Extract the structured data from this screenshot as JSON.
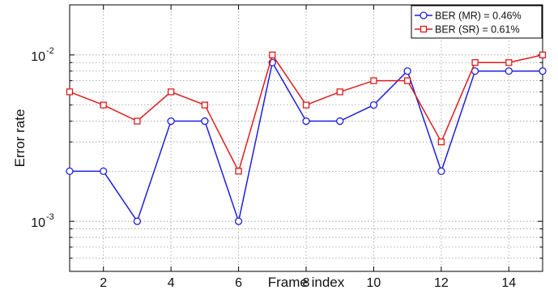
{
  "chart_data": {
    "type": "line",
    "xlabel": "Frame index",
    "ylabel": "Error rate",
    "xlim": [
      1,
      15
    ],
    "ylim": [
      0.0005,
      0.02
    ],
    "y_scale": "log",
    "grid": true,
    "legend_position": "top-right",
    "x_ticks": [
      2,
      4,
      6,
      8,
      10,
      12,
      14
    ],
    "x_tick_labels": [
      "2",
      "4",
      "6",
      "8",
      "10",
      "12",
      "14"
    ],
    "y_ticks": [
      0.001,
      0.01
    ],
    "y_tick_labels": [
      {
        "base": "10",
        "exp": "-3"
      },
      {
        "base": "10",
        "exp": "-2"
      }
    ],
    "x": [
      1,
      2,
      3,
      4,
      5,
      6,
      7,
      8,
      9,
      10,
      11,
      12,
      13,
      14,
      15
    ],
    "series": [
      {
        "name": "BER (MR) = 0.46%",
        "color": "#1f1fdc",
        "marker": "circle",
        "values": [
          0.002,
          0.002,
          0.001,
          0.004,
          0.004,
          0.001,
          0.009,
          0.004,
          0.004,
          0.005,
          0.008,
          0.002,
          0.008,
          0.008,
          0.008
        ]
      },
      {
        "name": "BER (SR) = 0.61%",
        "color": "#e01b1b",
        "marker": "square",
        "values": [
          0.006,
          0.005,
          0.004,
          0.006,
          0.005,
          0.002,
          0.01,
          0.005,
          0.006,
          0.007,
          0.007,
          0.003,
          0.009,
          0.009,
          0.01
        ]
      }
    ]
  }
}
